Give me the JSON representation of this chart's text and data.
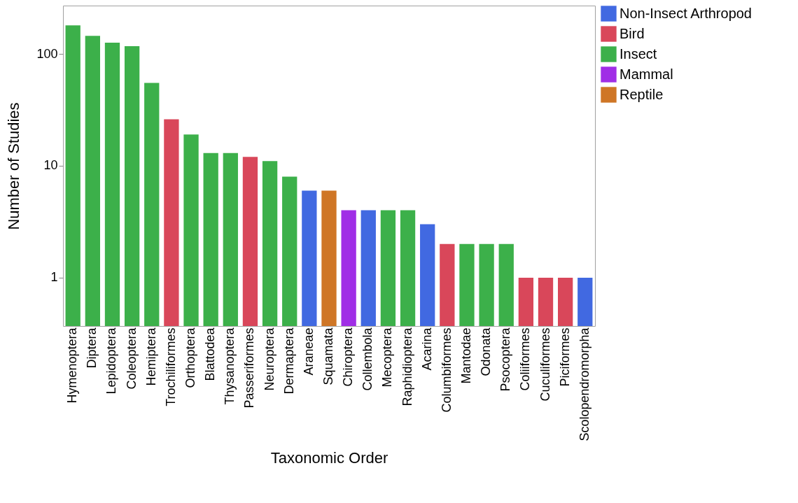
{
  "chart_data": {
    "type": "bar",
    "xlabel": "Taxonomic Order",
    "ylabel": "Number of Studies",
    "log": "y",
    "grid": false,
    "legend": "right",
    "categories": [
      "Hymenoptera",
      "Diptera",
      "Lepidoptera",
      "Coleoptera",
      "Hemiptera",
      "Trochiliformes",
      "Orthoptera",
      "Blattodea",
      "Thysanoptera",
      "Passeriformes",
      "Neuroptera",
      "Dermaptera",
      "Araneae",
      "Squamata",
      "Chiroptera",
      "Collembola",
      "Mecoptera",
      "Raphidioptera",
      "Acarina",
      "Columbiformes",
      "Mantodae",
      "Odonata",
      "Psocoptera",
      "Coliiformes",
      "Cuculiformes",
      "Piciformes",
      "Scolopendromorpha"
    ],
    "ylim": [
      0.37,
      270
    ],
    "yticks": [
      1,
      10,
      100
    ],
    "series": [
      {
        "name": "Non-Insect Arthropod",
        "color": "#4169e1",
        "values": [
          null,
          null,
          null,
          null,
          null,
          null,
          null,
          null,
          null,
          null,
          null,
          null,
          6,
          null,
          null,
          4,
          null,
          null,
          3,
          null,
          null,
          null,
          null,
          null,
          null,
          null,
          1
        ]
      },
      {
        "name": "Bird",
        "color": "#d9475a",
        "values": [
          null,
          null,
          null,
          null,
          null,
          26,
          null,
          null,
          null,
          12,
          null,
          null,
          null,
          null,
          null,
          null,
          null,
          null,
          null,
          2,
          null,
          null,
          null,
          1,
          1,
          1,
          null
        ]
      },
      {
        "name": "Insect",
        "color": "#3cb04a",
        "values": [
          180,
          145,
          126,
          117,
          55,
          null,
          19,
          13,
          13,
          null,
          11,
          8,
          null,
          null,
          null,
          null,
          4,
          4,
          null,
          null,
          2,
          2,
          2,
          null,
          null,
          null,
          null
        ]
      },
      {
        "name": "Mammal",
        "color": "#a02ee6",
        "values": [
          null,
          null,
          null,
          null,
          null,
          null,
          null,
          null,
          null,
          null,
          null,
          null,
          null,
          null,
          4,
          null,
          null,
          null,
          null,
          null,
          null,
          null,
          null,
          null,
          null,
          null,
          null
        ]
      },
      {
        "name": "Reptile",
        "color": "#cf7626",
        "values": [
          null,
          null,
          null,
          null,
          null,
          null,
          null,
          null,
          null,
          null,
          null,
          null,
          null,
          6,
          null,
          null,
          null,
          null,
          null,
          null,
          null,
          null,
          null,
          null,
          null,
          null,
          null
        ]
      }
    ]
  }
}
